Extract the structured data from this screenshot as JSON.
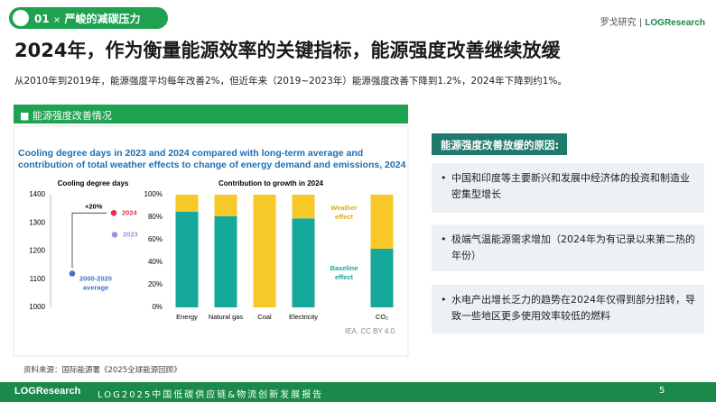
{
  "header": {
    "number": "01",
    "separator": "×",
    "section": "严峻的减碳压力",
    "brand_cn": "罗戈研究",
    "brand_en": "LOGResearch"
  },
  "title": "2024年，作为衡量能源效率的关键指标，能源强度改善继续放缓",
  "subtitle": "从2010年到2019年，能源强度平均每年改善2%，但近年来（2019~2023年）能源强度改善下降到1.2%，2024年下降到约1%。",
  "panel_label": "■ 能源强度改善情况",
  "figure_title": "Cooling degree days in 2023 and 2024 compared with long-term average and contribution of total weather effects to change of energy demand and emissions, 2024",
  "figure_credit": "IEA. CC BY 4.0.",
  "chart_data": [
    {
      "type": "scatter",
      "title": "Cooling degree days",
      "categories": [
        "2000-2020 average",
        "2023",
        "2024"
      ],
      "values": [
        1120,
        1258,
        1335
      ],
      "colors": [
        "#4472c4",
        "#a98be0",
        "#e8304a"
      ],
      "annotation": "+20%",
      "ylim": [
        1000,
        1400
      ],
      "yticks": [
        1000,
        1100,
        1200,
        1300,
        1400
      ]
    },
    {
      "type": "stacked_bar",
      "title": "Contribution to growth in 2024",
      "categories": [
        "Energy",
        "Natural gas",
        "Coal",
        "Electricity",
        "CO₂"
      ],
      "series": [
        {
          "name": "Baseline effect",
          "color": "#14a99a",
          "values": [
            85,
            81,
            0,
            79,
            52
          ]
        },
        {
          "name": "Weather effect",
          "color": "#f6c929",
          "values": [
            15,
            19,
            100,
            21,
            48
          ]
        }
      ],
      "ylim": [
        0,
        100
      ],
      "yticks": [
        {
          "value": 0,
          "label": "0%"
        },
        {
          "value": 20,
          "label": "20%"
        },
        {
          "value": 40,
          "label": "40%"
        },
        {
          "value": 60,
          "label": "60%"
        },
        {
          "value": 80,
          "label": "80%"
        },
        {
          "value": 100,
          "label": "100%"
        }
      ]
    }
  ],
  "reasons": {
    "heading": "能源强度改善放缓的原因:",
    "items": [
      "中国和印度等主要新兴和发展中经济体的投资和制造业密集型增长",
      "极端气温能源需求增加（2024年为有记录以来第二热的年份）",
      "水电产出增长乏力的趋势在2024年仅得到部分扭转，导致一些地区更多使用效率较低的燃料"
    ]
  },
  "source": "资料来源：国际能源署《2025全球能源回顾》",
  "footer": {
    "brand": "LOGResearch",
    "report": "LOG2025中国低碳供应链&物流创新发展报告",
    "page": "5"
  }
}
